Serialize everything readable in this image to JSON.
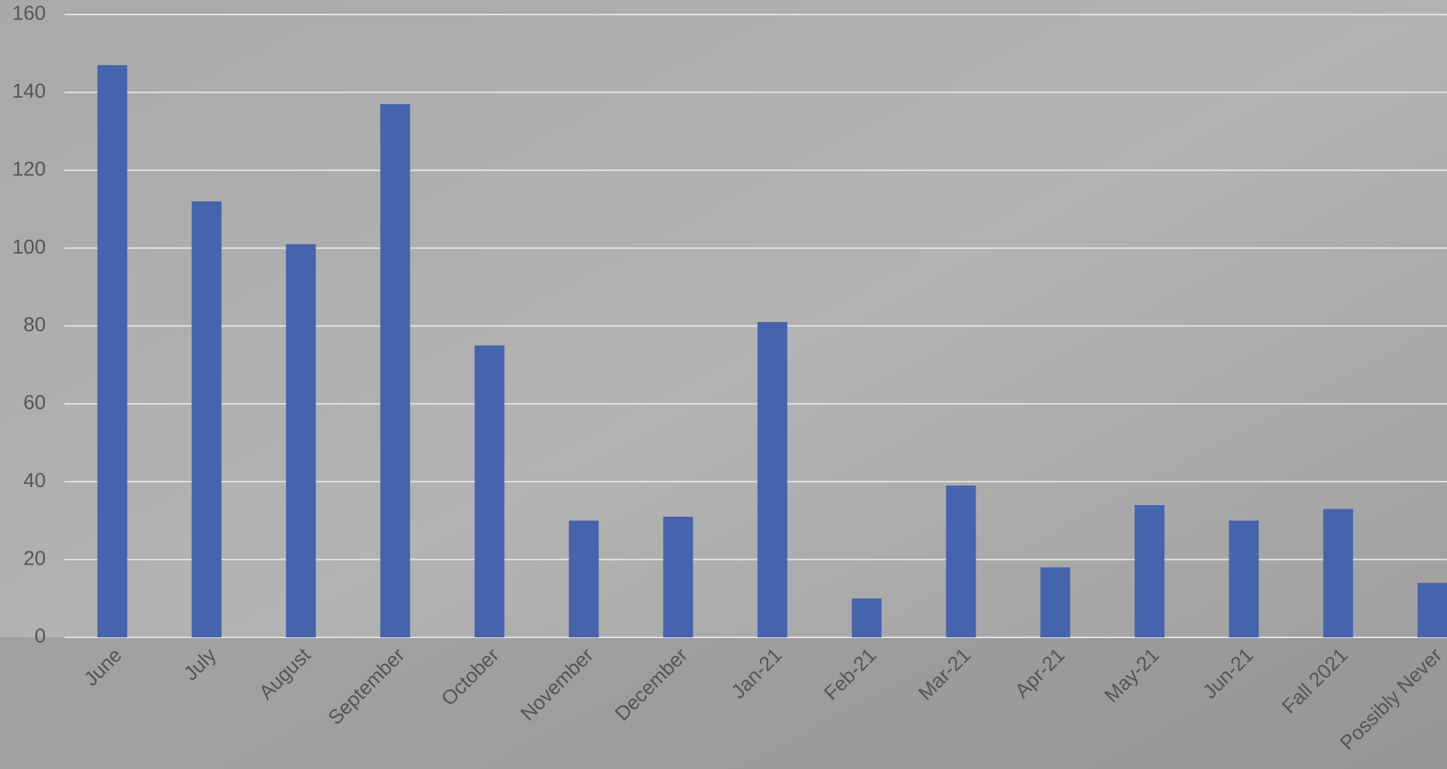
{
  "chart_data": {
    "type": "bar",
    "categories": [
      "June",
      "July",
      "August",
      "September",
      "October",
      "November",
      "December",
      "Jan-21",
      "Feb-21",
      "Mar-21",
      "Apr-21",
      "May-21",
      "Jun-21",
      "Fall 2021",
      "Possibly Never"
    ],
    "values": [
      147,
      112,
      101,
      137,
      75,
      30,
      31,
      81,
      10,
      39,
      18,
      34,
      30,
      33,
      14
    ],
    "color": "#4564ad",
    "ylim": [
      0,
      160
    ],
    "yticks": [
      0,
      20,
      40,
      60,
      80,
      100,
      120,
      140,
      160
    ],
    "grid": true
  }
}
